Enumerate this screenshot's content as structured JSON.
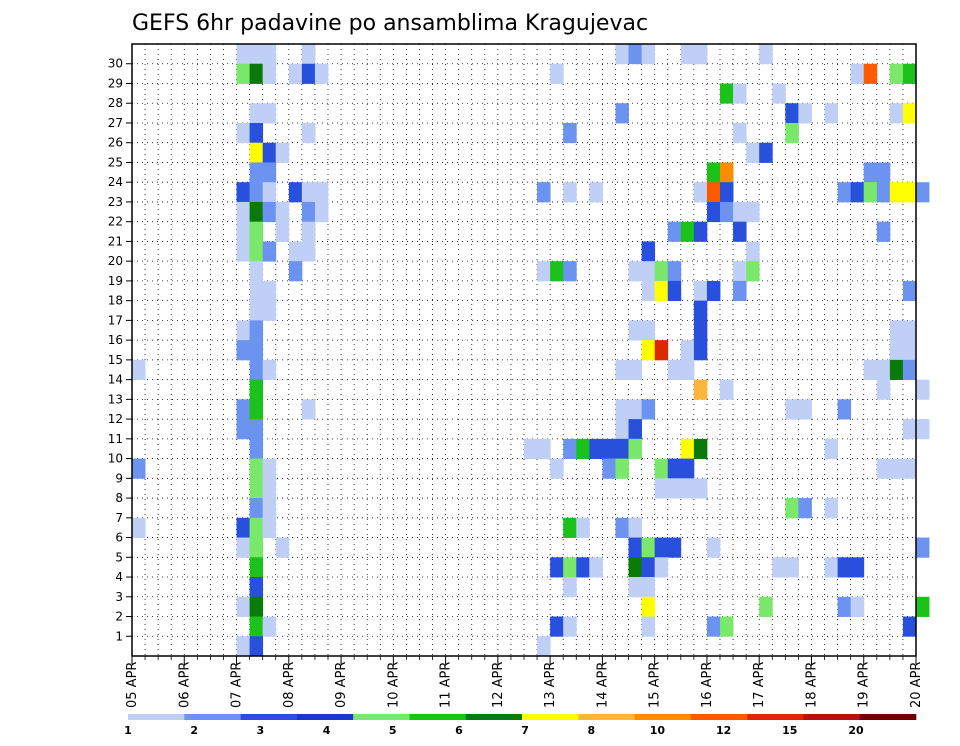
{
  "chart_data": {
    "type": "heatmap",
    "title": "GEFS 6hr padavine po ansamblima Kragujevac",
    "xlabel": "",
    "ylabel": "",
    "x_ticks": [
      "05 APR",
      "06 APR",
      "07 APR",
      "08 APR",
      "09 APR",
      "10 APR",
      "11 APR",
      "12 APR",
      "13 APR",
      "14 APR",
      "15 APR",
      "16 APR",
      "17 APR",
      "18 APR",
      "19 APR",
      "20 APR"
    ],
    "y_ticks": [
      1,
      2,
      3,
      4,
      5,
      6,
      7,
      8,
      9,
      10,
      11,
      12,
      13,
      14,
      15,
      16,
      17,
      18,
      19,
      20,
      21,
      22,
      23,
      24,
      25,
      26,
      27,
      28,
      29,
      30
    ],
    "xlim": [
      "05 APR 00z",
      "20 APR 00z"
    ],
    "time_step_hours": 6,
    "ylim": [
      0,
      30
    ],
    "grid": true,
    "colorbar": {
      "colors": [
        "#bfcff6",
        "#6b93ef",
        "#2850dc",
        "#1a38c8",
        "#7ae86a",
        "#1ac21a",
        "#0a7a0a",
        "#ffff00",
        "#ffb43c",
        "#ff8c00",
        "#ff5a00",
        "#dc2800",
        "#b41400",
        "#6e0000"
      ],
      "tick_labels": [
        "1",
        "2",
        "3",
        "4",
        "5",
        "6",
        "7",
        "8",
        "10",
        "12",
        "15",
        "20"
      ],
      "bounds": [
        1,
        2,
        3,
        4,
        5,
        6,
        7,
        8,
        10,
        12,
        15,
        20
      ]
    },
    "cells": [
      [
        "07 APR 00z",
        30,
        1
      ],
      [
        "07 APR 06z",
        30,
        1
      ],
      [
        "07 APR 12z",
        30,
        1
      ],
      [
        "08 APR 06z",
        30,
        1
      ],
      [
        "14 APR 06z",
        30,
        1
      ],
      [
        "14 APR 12z",
        30,
        2
      ],
      [
        "14 APR 18z",
        30,
        1
      ],
      [
        "15 APR 12z",
        30,
        1
      ],
      [
        "15 APR 18z",
        30,
        1
      ],
      [
        "17 APR 00z",
        30,
        1
      ],
      [
        "07 APR 00z",
        29,
        5
      ],
      [
        "07 APR 06z",
        29,
        7
      ],
      [
        "07 APR 12z",
        29,
        1
      ],
      [
        "08 APR 00z",
        29,
        1
      ],
      [
        "08 APR 06z",
        29,
        3
      ],
      [
        "08 APR 12z",
        29,
        1
      ],
      [
        "13 APR 00z",
        29,
        1
      ],
      [
        "18 APR 18z",
        29,
        1
      ],
      [
        "19 APR 00z",
        29,
        15
      ],
      [
        "19 APR 12z",
        29,
        5
      ],
      [
        "19 APR 18z",
        29,
        6
      ],
      [
        "16 APR 06z",
        28,
        6
      ],
      [
        "16 APR 12z",
        28,
        1
      ],
      [
        "17 APR 06z",
        28,
        1
      ],
      [
        "07 APR 06z",
        27,
        1
      ],
      [
        "07 APR 12z",
        27,
        1
      ],
      [
        "14 APR 06z",
        27,
        2
      ],
      [
        "17 APR 12z",
        27,
        3
      ],
      [
        "17 APR 18z",
        27,
        1
      ],
      [
        "18 APR 06z",
        27,
        1
      ],
      [
        "19 APR 12z",
        27,
        1
      ],
      [
        "19 APR 18z",
        27,
        8
      ],
      [
        "07 APR 00z",
        26,
        1
      ],
      [
        "07 APR 06z",
        26,
        3
      ],
      [
        "08 APR 06z",
        26,
        1
      ],
      [
        "13 APR 06z",
        26,
        2
      ],
      [
        "16 APR 12z",
        26,
        1
      ],
      [
        "17 APR 12z",
        26,
        5
      ],
      [
        "07 APR 06z",
        25,
        9
      ],
      [
        "07 APR 12z",
        25,
        3
      ],
      [
        "07 APR 18z",
        25,
        1
      ],
      [
        "16 APR 18z",
        25,
        1
      ],
      [
        "17 APR 00z",
        25,
        3
      ],
      [
        "07 APR 06z",
        24,
        2
      ],
      [
        "07 APR 12z",
        24,
        2
      ],
      [
        "16 APR 00z",
        24,
        6
      ],
      [
        "16 APR 06z",
        24,
        12
      ],
      [
        "19 APR 00z",
        24,
        2
      ],
      [
        "19 APR 06z",
        24,
        2
      ],
      [
        "07 APR 00z",
        23,
        3
      ],
      [
        "07 APR 06z",
        23,
        2
      ],
      [
        "07 APR 12z",
        23,
        1
      ],
      [
        "08 APR 00z",
        23,
        3
      ],
      [
        "08 APR 06z",
        23,
        1
      ],
      [
        "08 APR 12z",
        23,
        1
      ],
      [
        "12 APR 18z",
        23,
        2
      ],
      [
        "13 APR 06z",
        23,
        1
      ],
      [
        "13 APR 18z",
        23,
        1
      ],
      [
        "15 APR 18z",
        23,
        1
      ],
      [
        "16 APR 00z",
        23,
        15
      ],
      [
        "16 APR 06z",
        23,
        3
      ],
      [
        "18 APR 12z",
        23,
        2
      ],
      [
        "18 APR 18z",
        23,
        3
      ],
      [
        "19 APR 00z",
        23,
        5
      ],
      [
        "19 APR 06z",
        23,
        2
      ],
      [
        "19 APR 12z",
        23,
        9
      ],
      [
        "19 APR 18z",
        23,
        9
      ],
      [
        "20 APR 00z",
        23,
        2
      ],
      [
        "07 APR 00z",
        22,
        1
      ],
      [
        "07 APR 06z",
        22,
        7
      ],
      [
        "07 APR 12z",
        22,
        2
      ],
      [
        "07 APR 18z",
        22,
        1
      ],
      [
        "08 APR 06z",
        22,
        2
      ],
      [
        "08 APR 12z",
        22,
        1
      ],
      [
        "16 APR 00z",
        22,
        3
      ],
      [
        "16 APR 06z",
        22,
        2
      ],
      [
        "16 APR 12z",
        22,
        1
      ],
      [
        "16 APR 18z",
        22,
        1
      ],
      [
        "07 APR 00z",
        21,
        1
      ],
      [
        "07 APR 06z",
        21,
        5
      ],
      [
        "07 APR 18z",
        21,
        1
      ],
      [
        "08 APR 06z",
        21,
        1
      ],
      [
        "15 APR 06z",
        21,
        2
      ],
      [
        "15 APR 12z",
        21,
        6
      ],
      [
        "15 APR 18z",
        21,
        3
      ],
      [
        "16 APR 12z",
        21,
        3
      ],
      [
        "19 APR 06z",
        21,
        2
      ],
      [
        "07 APR 00z",
        20,
        1
      ],
      [
        "07 APR 06z",
        20,
        5
      ],
      [
        "07 APR 12z",
        20,
        2
      ],
      [
        "08 APR 00z",
        20,
        1
      ],
      [
        "08 APR 06z",
        20,
        1
      ],
      [
        "14 APR 18z",
        20,
        3
      ],
      [
        "16 APR 18z",
        20,
        1
      ],
      [
        "07 APR 06z",
        19,
        1
      ],
      [
        "08 APR 00z",
        19,
        2
      ],
      [
        "12 APR 18z",
        19,
        1
      ],
      [
        "13 APR 00z",
        19,
        6
      ],
      [
        "13 APR 06z",
        19,
        2
      ],
      [
        "14 APR 12z",
        19,
        1
      ],
      [
        "14 APR 18z",
        19,
        1
      ],
      [
        "15 APR 00z",
        19,
        5
      ],
      [
        "15 APR 06z",
        19,
        2
      ],
      [
        "16 APR 12z",
        19,
        1
      ],
      [
        "16 APR 18z",
        19,
        5
      ],
      [
        "07 APR 06z",
        18,
        1
      ],
      [
        "07 APR 12z",
        18,
        1
      ],
      [
        "14 APR 18z",
        18,
        1
      ],
      [
        "15 APR 00z",
        18,
        8
      ],
      [
        "15 APR 06z",
        18,
        3
      ],
      [
        "15 APR 18z",
        18,
        1
      ],
      [
        "16 APR 00z",
        18,
        3
      ],
      [
        "16 APR 12z",
        18,
        2
      ],
      [
        "19 APR 18z",
        18,
        2
      ],
      [
        "07 APR 06z",
        17,
        1
      ],
      [
        "07 APR 12z",
        17,
        1
      ],
      [
        "15 APR 18z",
        17,
        3
      ],
      [
        "07 APR 00z",
        16,
        1
      ],
      [
        "07 APR 06z",
        16,
        2
      ],
      [
        "14 APR 12z",
        16,
        1
      ],
      [
        "14 APR 18z",
        16,
        1
      ],
      [
        "15 APR 18z",
        16,
        3
      ],
      [
        "19 APR 12z",
        16,
        1
      ],
      [
        "19 APR 18z",
        16,
        1
      ],
      [
        "07 APR 00z",
        15,
        2
      ],
      [
        "07 APR 06z",
        15,
        2
      ],
      [
        "14 APR 18z",
        15,
        9
      ],
      [
        "15 APR 00z",
        15,
        20
      ],
      [
        "15 APR 12z",
        15,
        1
      ],
      [
        "15 APR 18z",
        15,
        3
      ],
      [
        "19 APR 12z",
        15,
        1
      ],
      [
        "19 APR 18z",
        15,
        1
      ],
      [
        "05 APR 00z",
        14,
        1
      ],
      [
        "07 APR 06z",
        14,
        2
      ],
      [
        "07 APR 12z",
        14,
        1
      ],
      [
        "14 APR 06z",
        14,
        1
      ],
      [
        "14 APR 12z",
        14,
        1
      ],
      [
        "15 APR 06z",
        14,
        1
      ],
      [
        "15 APR 12z",
        14,
        1
      ],
      [
        "19 APR 00z",
        14,
        1
      ],
      [
        "19 APR 06z",
        14,
        1
      ],
      [
        "19 APR 12z",
        14,
        7
      ],
      [
        "19 APR 18z",
        14,
        2
      ],
      [
        "07 APR 06z",
        13,
        6
      ],
      [
        "15 APR 18z",
        13,
        10
      ],
      [
        "16 APR 06z",
        13,
        1
      ],
      [
        "19 APR 06z",
        13,
        1
      ],
      [
        "20 APR 00z",
        13,
        1
      ],
      [
        "07 APR 00z",
        12,
        2
      ],
      [
        "07 APR 06z",
        12,
        6
      ],
      [
        "08 APR 06z",
        12,
        1
      ],
      [
        "14 APR 06z",
        12,
        1
      ],
      [
        "14 APR 12z",
        12,
        1
      ],
      [
        "14 APR 18z",
        12,
        2
      ],
      [
        "17 APR 12z",
        12,
        1
      ],
      [
        "17 APR 18z",
        12,
        1
      ],
      [
        "18 APR 12z",
        12,
        2
      ],
      [
        "07 APR 00z",
        11,
        2
      ],
      [
        "07 APR 06z",
        11,
        2
      ],
      [
        "14 APR 06z",
        11,
        1
      ],
      [
        "14 APR 12z",
        11,
        3
      ],
      [
        "19 APR 18z",
        11,
        1
      ],
      [
        "20 APR 00z",
        11,
        1
      ],
      [
        "07 APR 06z",
        10,
        2
      ],
      [
        "12 APR 12z",
        10,
        1
      ],
      [
        "12 APR 18z",
        10,
        1
      ],
      [
        "13 APR 06z",
        10,
        2
      ],
      [
        "13 APR 12z",
        10,
        6
      ],
      [
        "13 APR 18z",
        10,
        3
      ],
      [
        "14 APR 00z",
        10,
        3
      ],
      [
        "14 APR 06z",
        10,
        3
      ],
      [
        "14 APR 12z",
        10,
        5
      ],
      [
        "15 APR 12z",
        10,
        8
      ],
      [
        "15 APR 18z",
        10,
        7
      ],
      [
        "18 APR 06z",
        10,
        1
      ],
      [
        "05 APR 00z",
        9,
        2
      ],
      [
        "07 APR 06z",
        9,
        5
      ],
      [
        "07 APR 12z",
        9,
        1
      ],
      [
        "13 APR 00z",
        9,
        1
      ],
      [
        "14 APR 00z",
        9,
        2
      ],
      [
        "14 APR 06z",
        9,
        5
      ],
      [
        "15 APR 00z",
        9,
        5
      ],
      [
        "15 APR 06z",
        9,
        3
      ],
      [
        "15 APR 12z",
        9,
        3
      ],
      [
        "19 APR 06z",
        9,
        1
      ],
      [
        "19 APR 12z",
        9,
        1
      ],
      [
        "19 APR 18z",
        9,
        1
      ],
      [
        "07 APR 06z",
        8,
        5
      ],
      [
        "07 APR 12z",
        8,
        1
      ],
      [
        "15 APR 00z",
        8,
        1
      ],
      [
        "15 APR 06z",
        8,
        1
      ],
      [
        "15 APR 12z",
        8,
        1
      ],
      [
        "15 APR 18z",
        8,
        1
      ],
      [
        "07 APR 06z",
        7,
        2
      ],
      [
        "07 APR 12z",
        7,
        1
      ],
      [
        "17 APR 12z",
        7,
        5
      ],
      [
        "17 APR 18z",
        7,
        2
      ],
      [
        "18 APR 06z",
        7,
        1
      ],
      [
        "05 APR 00z",
        6,
        1
      ],
      [
        "07 APR 00z",
        6,
        3
      ],
      [
        "07 APR 06z",
        6,
        5
      ],
      [
        "07 APR 12z",
        6,
        1
      ],
      [
        "13 APR 06z",
        6,
        6
      ],
      [
        "13 APR 12z",
        6,
        1
      ],
      [
        "14 APR 06z",
        6,
        2
      ],
      [
        "14 APR 12z",
        6,
        1
      ],
      [
        "07 APR 00z",
        5,
        1
      ],
      [
        "07 APR 06z",
        5,
        5
      ],
      [
        "07 APR 18z",
        5,
        1
      ],
      [
        "14 APR 12z",
        5,
        3
      ],
      [
        "14 APR 18z",
        5,
        5
      ],
      [
        "15 APR 00z",
        5,
        3
      ],
      [
        "15 APR 06z",
        5,
        3
      ],
      [
        "16 APR 00z",
        5,
        1
      ],
      [
        "20 APR 00z",
        5,
        2
      ],
      [
        "07 APR 06z",
        4,
        6
      ],
      [
        "13 APR 00z",
        4,
        3
      ],
      [
        "13 APR 06z",
        4,
        5
      ],
      [
        "13 APR 12z",
        4,
        3
      ],
      [
        "13 APR 18z",
        4,
        1
      ],
      [
        "14 APR 12z",
        4,
        7
      ],
      [
        "14 APR 18z",
        4,
        3
      ],
      [
        "15 APR 00z",
        4,
        1
      ],
      [
        "17 APR 06z",
        4,
        1
      ],
      [
        "17 APR 12z",
        4,
        1
      ],
      [
        "18 APR 06z",
        4,
        1
      ],
      [
        "18 APR 12z",
        4,
        3
      ],
      [
        "18 APR 18z",
        4,
        3
      ],
      [
        "07 APR 06z",
        3,
        3
      ],
      [
        "13 APR 06z",
        3,
        1
      ],
      [
        "14 APR 12z",
        3,
        1
      ],
      [
        "14 APR 18z",
        3,
        1
      ],
      [
        "07 APR 00z",
        2,
        1
      ],
      [
        "07 APR 06z",
        2,
        7
      ],
      [
        "14 APR 18z",
        2,
        8
      ],
      [
        "17 APR 00z",
        2,
        5
      ],
      [
        "18 APR 12z",
        2,
        2
      ],
      [
        "18 APR 18z",
        2,
        1
      ],
      [
        "20 APR 00z",
        2,
        6
      ],
      [
        "07 APR 06z",
        1,
        6
      ],
      [
        "07 APR 12z",
        1,
        1
      ],
      [
        "13 APR 00z",
        1,
        3
      ],
      [
        "13 APR 06z",
        1,
        1
      ],
      [
        "14 APR 18z",
        1,
        1
      ],
      [
        "16 APR 00z",
        1,
        2
      ],
      [
        "16 APR 06z",
        1,
        5
      ],
      [
        "19 APR 18z",
        1,
        3
      ],
      [
        "07 APR 00z",
        0,
        1
      ],
      [
        "07 APR 06z",
        0,
        3
      ],
      [
        "12 APR 18z",
        0,
        1
      ]
    ]
  }
}
